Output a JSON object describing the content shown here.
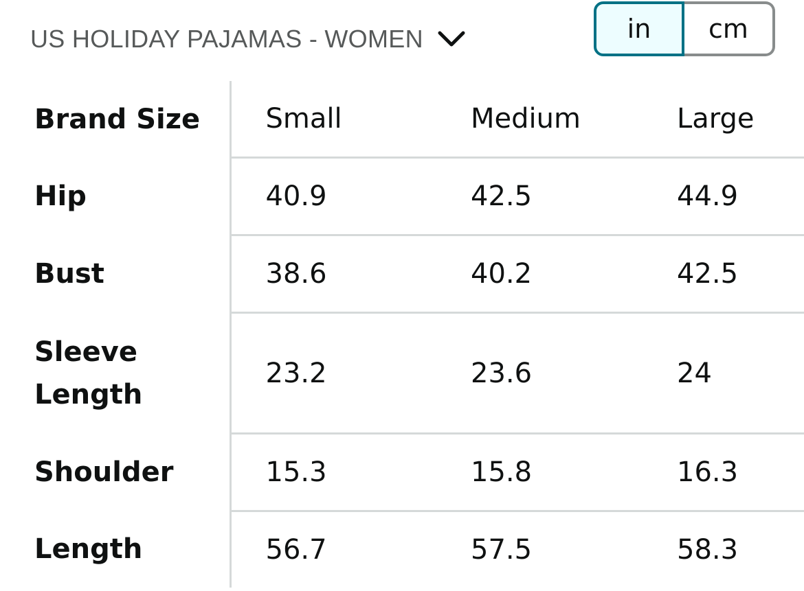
{
  "chart_selector": {
    "label": "US HOLIDAY PAJAMAS - WOMEN",
    "icon": "chevron-down-icon"
  },
  "unit_toggle": {
    "options": [
      "in",
      "cm"
    ],
    "selected": "in",
    "accent_color": "#007185"
  },
  "table": {
    "header": {
      "label": "Brand Size",
      "sizes": [
        "Small",
        "Medium",
        "Large"
      ]
    },
    "rows": [
      {
        "label": "Hip",
        "values": [
          "40.9",
          "42.5",
          "44.9"
        ]
      },
      {
        "label": "Bust",
        "values": [
          "38.6",
          "40.2",
          "42.5"
        ]
      },
      {
        "label": "Sleeve Length",
        "values": [
          "23.2",
          "23.6",
          "24"
        ]
      },
      {
        "label": "Shoulder",
        "values": [
          "15.3",
          "15.8",
          "16.3"
        ]
      },
      {
        "label": "Length",
        "values": [
          "56.7",
          "57.5",
          "58.3"
        ]
      }
    ]
  }
}
